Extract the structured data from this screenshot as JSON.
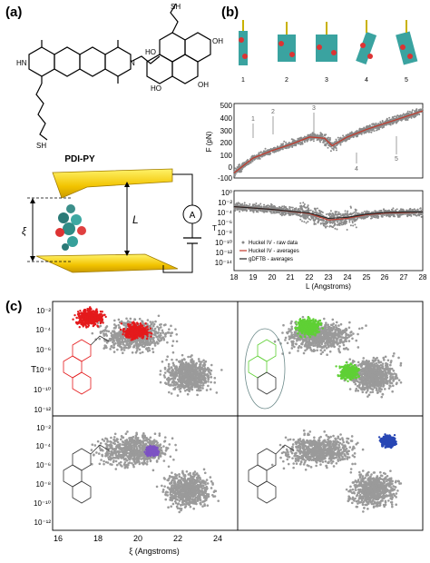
{
  "panels": {
    "a": {
      "label": "(a)",
      "molecule_name": "PDI-PY",
      "atoms": {
        "sh_top": "SH",
        "sh_bottom": "SH",
        "ho": "HO",
        "oh": "OH",
        "hn": "HN",
        "n": "N"
      },
      "symbols": {
        "xi": "ξ",
        "length": "L",
        "ammeter": "A"
      }
    },
    "b": {
      "label": "(b)",
      "snapshot_labels": [
        "1",
        "2",
        "3",
        "4",
        "5"
      ],
      "force_plot": {
        "ylabel": "F (pN)",
        "yticks": [
          "500",
          "400",
          "300",
          "200",
          "100",
          "0",
          "-100"
        ],
        "marker_labels": [
          "1",
          "2",
          "3",
          "4",
          "5"
        ]
      },
      "transmission_plot": {
        "ylabel": "T",
        "yticks": [
          "10⁰",
          "10⁻²",
          "10⁻⁴",
          "10⁻⁶",
          "10⁻⁸",
          "10⁻¹⁰",
          "10⁻¹²",
          "10⁻¹⁴"
        ],
        "legend": [
          "Huckel IV - raw data",
          "Huckel IV - averages",
          "gDFTB - averages"
        ]
      },
      "xticks": [
        "18",
        "19",
        "20",
        "21",
        "22",
        "23",
        "24",
        "25",
        "26",
        "27",
        "28"
      ],
      "xlabel": "L (Angstroms)"
    },
    "c": {
      "label": "(c)",
      "ylabel": "T",
      "yticks": [
        "10⁻²",
        "10⁻⁴",
        "10⁻⁶",
        "10⁻⁸",
        "10⁻¹⁰",
        "10⁻¹²"
      ],
      "xticks": [
        "16",
        "18",
        "20",
        "22",
        "24"
      ],
      "xlabel": "ξ (Angstroms)",
      "highlight_colors": [
        "#e41a1c",
        "#5fd035",
        "#7d52c4",
        "#2847b5"
      ],
      "background_color": "#9a9a9a"
    }
  },
  "chart_data": [
    {
      "type": "scatter",
      "panel": "b-top",
      "xlabel": "L (Angstroms)",
      "ylabel": "F (pN)",
      "xlim": [
        18,
        28
      ],
      "ylim": [
        -100,
        500
      ],
      "series": [
        {
          "name": "",
          "x": [
            18,
            19,
            20,
            21,
            22,
            22.8,
            23.2,
            24,
            25,
            26,
            27,
            28
          ],
          "values": [
            -60,
            60,
            120,
            170,
            230,
            220,
            160,
            230,
            290,
            340,
            390,
            440
          ]
        }
      ],
      "annotations": [
        {
          "label": "1",
          "x": 19
        },
        {
          "label": "2",
          "x": 21
        },
        {
          "label": "3",
          "x": 23
        },
        {
          "label": "4",
          "x": 25
        },
        {
          "label": "5",
          "x": 27
        }
      ]
    },
    {
      "type": "scatter",
      "panel": "b-bottom",
      "xlabel": "L (Angstroms)",
      "ylabel": "T",
      "xlim": [
        18,
        28
      ],
      "log_y": true,
      "series": [
        {
          "name": "Huckel IV - averages",
          "x": [
            18,
            20,
            22,
            23,
            24,
            25,
            26,
            27,
            28
          ],
          "values": [
            -3,
            -3.5,
            -4.3,
            -5.5,
            -5.2,
            -4.5,
            -4.2,
            -4.1,
            -4
          ]
        },
        {
          "name": "gDFTB - averages",
          "x": [
            18,
            20,
            22,
            23,
            24,
            25,
            26,
            27,
            28
          ],
          "values": [
            -3,
            -3.5,
            -4.2,
            -5.2,
            -5,
            -4.4,
            -4.1,
            -4,
            -4
          ]
        }
      ]
    },
    {
      "type": "scatter",
      "panel": "c",
      "xlabel": "ξ (Angstroms)",
      "ylabel": "T",
      "xlim": [
        16,
        25
      ],
      "log_y": true,
      "subplots": 4
    }
  ]
}
